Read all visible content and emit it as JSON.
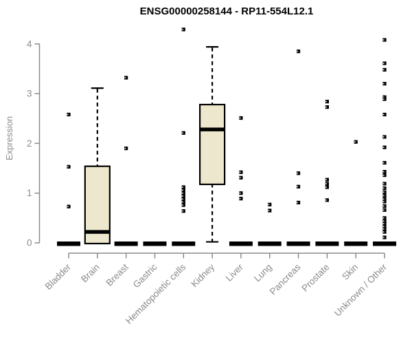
{
  "chart": {
    "title": "ENSG00000258144 - RP11-554L12.1",
    "ylabel": "Expression"
  },
  "chart_data": {
    "type": "boxplot",
    "title": "ENSG00000258144 - RP11-554L12.1",
    "xlabel": "",
    "ylabel": "Expression",
    "ylim": [
      0,
      4.4
    ],
    "yticks": [
      0,
      1,
      2,
      3,
      4
    ],
    "grid": false,
    "legend": "none",
    "categories": [
      "Bladder",
      "Brain",
      "Breast",
      "Gastric",
      "Hematopoietic cells",
      "Kidney",
      "Liver",
      "Lung",
      "Pancreas",
      "Prostate",
      "Skin",
      "Unknown / Other"
    ],
    "series": [
      {
        "category": "Bladder",
        "box": {
          "q1": 0,
          "median": 0,
          "q3": 0,
          "whisker_low": 0,
          "whisker_high": 0
        },
        "outliers": [
          2.58,
          1.53,
          0.73
        ]
      },
      {
        "category": "Brain",
        "box": {
          "q1": 0,
          "median": 0.22,
          "q3": 1.54,
          "whisker_low": 0,
          "whisker_high": 3.11
        },
        "outliers": []
      },
      {
        "category": "Breast",
        "box": {
          "q1": 0,
          "median": 0,
          "q3": 0,
          "whisker_low": 0,
          "whisker_high": 0
        },
        "outliers": [
          3.32,
          1.9
        ]
      },
      {
        "category": "Gastric",
        "box": {
          "q1": 0,
          "median": 0,
          "q3": 0,
          "whisker_low": 0,
          "whisker_high": 0
        },
        "outliers": []
      },
      {
        "category": "Hematopoietic cells",
        "box": {
          "q1": 0,
          "median": 0,
          "q3": 0,
          "whisker_low": 0,
          "whisker_high": 0
        },
        "outliers": [
          4.29,
          2.21,
          1.12,
          1.06,
          1.0,
          0.94,
          0.88,
          0.82,
          0.76,
          0.64
        ]
      },
      {
        "category": "Kidney",
        "box": {
          "q1": 1.19,
          "median": 2.28,
          "q3": 2.78,
          "whisker_low": 0.02,
          "whisker_high": 3.94
        },
        "outliers": []
      },
      {
        "category": "Liver",
        "box": {
          "q1": 0,
          "median": 0,
          "q3": 0,
          "whisker_low": 0,
          "whisker_high": 0
        },
        "outliers": [
          2.51,
          1.42,
          1.31,
          1.0,
          0.89
        ]
      },
      {
        "category": "Lung",
        "box": {
          "q1": 0,
          "median": 0,
          "q3": 0,
          "whisker_low": 0,
          "whisker_high": 0
        },
        "outliers": [
          0.77,
          0.65
        ]
      },
      {
        "category": "Pancreas",
        "box": {
          "q1": 0,
          "median": 0,
          "q3": 0,
          "whisker_low": 0,
          "whisker_high": 0
        },
        "outliers": [
          3.85,
          1.4,
          1.13,
          0.81
        ]
      },
      {
        "category": "Prostate",
        "box": {
          "q1": 0,
          "median": 0,
          "q3": 0,
          "whisker_low": 0,
          "whisker_high": 0
        },
        "outliers": [
          2.84,
          2.73,
          1.27,
          1.19,
          1.12,
          0.86
        ]
      },
      {
        "category": "Skin",
        "box": {
          "q1": 0,
          "median": 0,
          "q3": 0,
          "whisker_low": 0,
          "whisker_high": 0
        },
        "outliers": [
          2.03
        ]
      },
      {
        "category": "Unknown / Other",
        "box": {
          "q1": 0,
          "median": 0,
          "q3": 0,
          "whisker_low": 0,
          "whisker_high": 0
        },
        "outliers": [
          4.08,
          3.61,
          3.48,
          3.2,
          2.93,
          2.89,
          2.58,
          2.13,
          1.92,
          1.61,
          1.43,
          1.36,
          1.19,
          1.1,
          1.02,
          0.95,
          0.88,
          0.83,
          0.74,
          0.66,
          0.5,
          0.44,
          0.39,
          0.33,
          0.28,
          0.22,
          0.11
        ]
      }
    ],
    "colors": {
      "box_fill": "#ede8cd",
      "box_stroke": "#000000",
      "median": "#000000",
      "point": "#000000",
      "axis": "#8a8a8a",
      "title": "#000000"
    }
  }
}
